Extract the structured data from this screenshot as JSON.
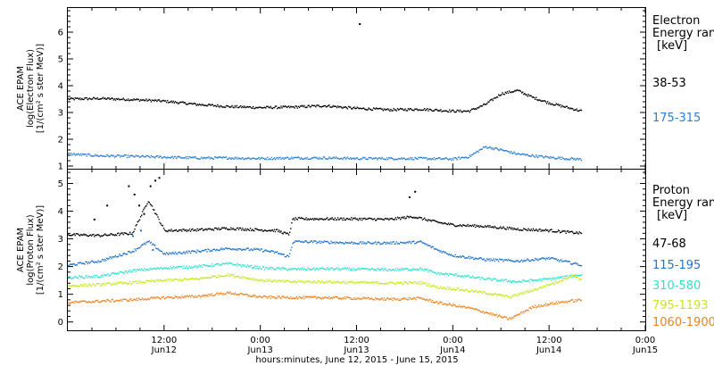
{
  "xaxis": {
    "label": "hours:minutes, June 12, 2015 - June 15, 2015",
    "ticks": [
      {
        "h": 12,
        "time": "12:00",
        "date": "Jun12"
      },
      {
        "h": 24,
        "time": "0:00",
        "date": "Jun13"
      },
      {
        "h": 36,
        "time": "12:00",
        "date": "Jun13"
      },
      {
        "h": 48,
        "time": "0:00",
        "date": "Jun14"
      },
      {
        "h": 60,
        "time": "12:00",
        "date": "Jun14"
      },
      {
        "h": 72,
        "time": "0:00",
        "date": "Jun15"
      }
    ]
  },
  "chart_data": [
    {
      "type": "scatter",
      "panel": "electron",
      "ylabel_lines": [
        "ACE EPAM",
        "log(Electron Flux)",
        "[1/(cm² s ster MeV)]"
      ],
      "ylim": [
        0.9,
        6.9
      ],
      "yticks": [
        "1",
        "2",
        "3",
        "4",
        "5",
        "6"
      ],
      "legend_title": [
        "Electron",
        "Energy ranges",
        "[keV]"
      ],
      "series": [
        {
          "name": "38-53",
          "color": "#000000",
          "x": [
            0,
            4,
            8,
            12,
            16,
            20,
            24,
            28,
            32,
            36,
            40,
            44,
            48,
            50,
            52,
            54,
            56,
            58,
            60,
            62,
            64
          ],
          "y": [
            3.5,
            3.52,
            3.48,
            3.42,
            3.3,
            3.22,
            3.18,
            3.2,
            3.25,
            3.15,
            3.1,
            3.12,
            3.05,
            3.05,
            3.3,
            3.7,
            3.82,
            3.55,
            3.35,
            3.2,
            3.05
          ]
        },
        {
          "name": "175-315",
          "color": "#2a7fd4",
          "x": [
            0,
            4,
            8,
            12,
            16,
            20,
            24,
            28,
            32,
            36,
            40,
            44,
            48,
            50,
            52,
            54,
            56,
            58,
            60,
            62,
            64
          ],
          "y": [
            1.45,
            1.38,
            1.36,
            1.33,
            1.3,
            1.3,
            1.28,
            1.3,
            1.3,
            1.28,
            1.28,
            1.28,
            1.26,
            1.35,
            1.72,
            1.6,
            1.45,
            1.38,
            1.32,
            1.28,
            1.25
          ]
        }
      ],
      "outliers": [
        {
          "series": "38-53",
          "x": 36.3,
          "y": 6.3
        }
      ]
    },
    {
      "type": "scatter",
      "panel": "proton",
      "ylabel_lines": [
        "ACE EPAM",
        "log(Proton Flux)",
        "[1/(cm² s ster MeV)]"
      ],
      "ylim": [
        -0.3,
        5.5
      ],
      "yticks": [
        "0",
        "1",
        "2",
        "3",
        "4",
        "5"
      ],
      "legend_title": [
        "Proton",
        "Energy ranges",
        "[keV]"
      ],
      "series": [
        {
          "name": "47-68",
          "color": "#000000",
          "x": [
            0,
            4,
            8,
            10,
            12,
            16,
            20,
            24,
            26,
            27.5,
            28,
            32,
            36,
            40,
            43,
            46,
            48,
            52,
            56,
            60,
            64
          ],
          "y": [
            3.15,
            3.12,
            3.2,
            4.4,
            3.3,
            3.32,
            3.38,
            3.32,
            3.3,
            3.15,
            3.72,
            3.72,
            3.72,
            3.7,
            3.8,
            3.6,
            3.5,
            3.45,
            3.35,
            3.3,
            3.2
          ]
        },
        {
          "name": "115-195",
          "color": "#1f74d0",
          "x": [
            0,
            4,
            8,
            10,
            12,
            16,
            20,
            24,
            26,
            27.5,
            28,
            32,
            36,
            40,
            44,
            46,
            48,
            52,
            56,
            60,
            64
          ],
          "y": [
            2.05,
            2.2,
            2.55,
            2.9,
            2.45,
            2.55,
            2.65,
            2.6,
            2.5,
            2.35,
            2.9,
            2.88,
            2.85,
            2.85,
            2.88,
            2.6,
            2.4,
            2.25,
            2.2,
            2.3,
            2.05
          ]
        },
        {
          "name": "310-580",
          "color": "#2fe0d0",
          "x": [
            0,
            4,
            8,
            12,
            16,
            20,
            24,
            28,
            32,
            36,
            40,
            44,
            46,
            48,
            52,
            56,
            60,
            64
          ],
          "y": [
            1.6,
            1.65,
            1.85,
            1.95,
            2.0,
            2.1,
            1.95,
            1.9,
            1.92,
            1.9,
            1.88,
            1.92,
            1.75,
            1.7,
            1.55,
            1.45,
            1.55,
            1.7
          ]
        },
        {
          "name": "795-1193",
          "color": "#c8e61e",
          "x": [
            0,
            4,
            8,
            12,
            16,
            20,
            24,
            28,
            32,
            36,
            40,
            44,
            46,
            48,
            52,
            55,
            58,
            61,
            63,
            64
          ],
          "y": [
            1.3,
            1.35,
            1.42,
            1.5,
            1.55,
            1.7,
            1.5,
            1.45,
            1.45,
            1.42,
            1.4,
            1.42,
            1.25,
            1.2,
            1.05,
            0.9,
            1.15,
            1.45,
            1.7,
            1.5
          ]
        },
        {
          "name": "1060-1900",
          "color": "#f0821e",
          "x": [
            0,
            4,
            8,
            12,
            16,
            20,
            24,
            28,
            32,
            36,
            40,
            44,
            46,
            48,
            50,
            52,
            55,
            58,
            61,
            64
          ],
          "y": [
            0.7,
            0.75,
            0.8,
            0.88,
            0.92,
            1.05,
            0.9,
            0.88,
            0.88,
            0.85,
            0.82,
            0.85,
            0.7,
            0.6,
            0.5,
            0.35,
            0.1,
            0.55,
            0.7,
            0.8
          ]
        }
      ],
      "outliers": [
        {
          "series": "47-68",
          "x": 7.5,
          "y": 4.9
        },
        {
          "series": "47-68",
          "x": 8.2,
          "y": 4.6
        },
        {
          "series": "47-68",
          "x": 8.8,
          "y": 4.2
        },
        {
          "series": "47-68",
          "x": 9.4,
          "y": 3.9
        },
        {
          "series": "47-68",
          "x": 10.2,
          "y": 4.9
        },
        {
          "series": "47-68",
          "x": 10.8,
          "y": 5.1
        },
        {
          "series": "47-68",
          "x": 11.3,
          "y": 5.2
        },
        {
          "series": "47-68",
          "x": 4.8,
          "y": 4.2
        },
        {
          "series": "47-68",
          "x": 3.2,
          "y": 3.7
        },
        {
          "series": "47-68",
          "x": 42.5,
          "y": 4.5
        },
        {
          "series": "47-68",
          "x": 43.2,
          "y": 4.7
        },
        {
          "series": "115-195",
          "x": 8.0,
          "y": 3.1
        },
        {
          "series": "115-195",
          "x": 9.0,
          "y": 3.3
        },
        {
          "series": "115-195",
          "x": 10.5,
          "y": 2.6
        }
      ]
    }
  ]
}
